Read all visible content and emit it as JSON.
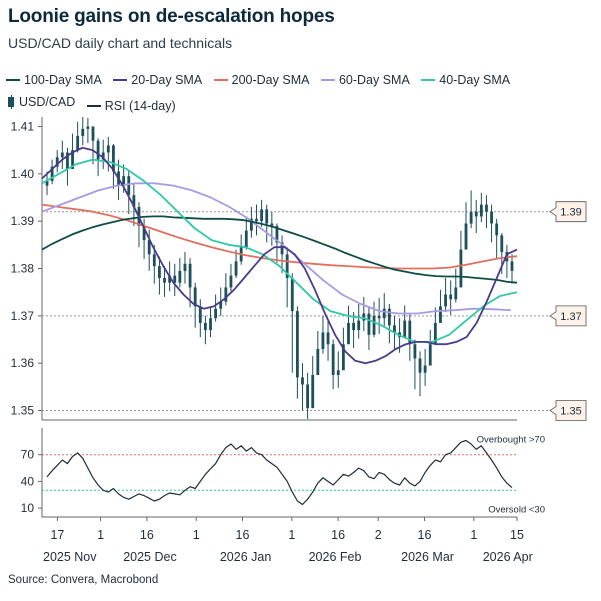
{
  "title": "Loonie gains on de-escalation hopes",
  "subtitle": "USD/CAD daily chart and technicals",
  "source": "Source: Convera, Macrobond",
  "colors": {
    "sma100": "#0e4d47",
    "sma20": "#4a3a8c",
    "sma200": "#e0705e",
    "sma60": "#a99be3",
    "sma40": "#2fc9a6",
    "candle": "#1d4f5c",
    "rsi": "#1f2d3a",
    "overbought": "#e0705e",
    "oversold": "#2fc9a6",
    "reference": "#999999"
  },
  "legend": [
    {
      "key": "sma100",
      "label": "100-Day SMA"
    },
    {
      "key": "sma20",
      "label": "20-Day SMA"
    },
    {
      "key": "sma200",
      "label": "200-Day SMA"
    },
    {
      "key": "sma60",
      "label": "60-Day SMA"
    },
    {
      "key": "sma40",
      "label": "40-Day SMA"
    },
    {
      "key": "candle",
      "label": "USD/CAD"
    },
    {
      "key": "rsi",
      "label": "RSI (14-day)"
    }
  ],
  "chart_data": {
    "type": "candlestick",
    "x_start": "2025-11-12",
    "x_end": "2026-04-15",
    "x_ticks": [
      {
        "date": "2025-11-17",
        "label": "17"
      },
      {
        "date": "2025-12-01",
        "label": "1"
      },
      {
        "date": "2025-12-16",
        "label": "16"
      },
      {
        "date": "2026-01-01",
        "label": "1"
      },
      {
        "date": "2026-01-16",
        "label": "16"
      },
      {
        "date": "2026-02-01",
        "label": "1"
      },
      {
        "date": "2026-02-16",
        "label": "16"
      },
      {
        "date": "2026-03-01",
        "label": "2"
      },
      {
        "date": "2026-03-16",
        "label": "16"
      },
      {
        "date": "2026-04-01",
        "label": "1"
      },
      {
        "date": "2026-04-15",
        "label": "15"
      }
    ],
    "month_labels": [
      {
        "date": "2025-11-21",
        "label": "2025 Nov"
      },
      {
        "date": "2025-12-17",
        "label": "2025 Dec"
      },
      {
        "date": "2026-01-17",
        "label": "2026 Jan"
      },
      {
        "date": "2026-02-15",
        "label": "2026 Feb"
      },
      {
        "date": "2026-03-17",
        "label": "2026 Mar"
      },
      {
        "date": "2026-04-12",
        "label": "2026 Apr"
      }
    ],
    "price_panel": {
      "ylim": [
        1.348,
        1.412
      ],
      "y_ticks": [
        1.35,
        1.36,
        1.37,
        1.38,
        1.39,
        1.4,
        1.41
      ],
      "y_tick_labels": [
        "1.35",
        "1.36",
        "1.37",
        "1.38",
        "1.39",
        "1.40",
        "1.41"
      ],
      "reference_lines": [
        {
          "value": 1.392,
          "label": "1.39"
        },
        {
          "value": 1.37,
          "label": "1.37"
        },
        {
          "value": 1.35,
          "label": "1.35"
        }
      ],
      "candles_close": [
        1.3985,
        1.4015,
        1.4035,
        1.4045,
        1.401,
        1.405,
        1.408,
        1.4095,
        1.41,
        1.407,
        1.403,
        1.4045,
        1.406,
        1.4005,
        1.3975,
        1.3995,
        1.3955,
        1.393,
        1.389,
        1.386,
        1.383,
        1.3805,
        1.378,
        1.377,
        1.3785,
        1.377,
        1.3795,
        1.381,
        1.376,
        1.372,
        1.3685,
        1.367,
        1.3695,
        1.3715,
        1.373,
        1.376,
        1.3785,
        1.3815,
        1.3845,
        1.388,
        1.3905,
        1.39,
        1.3925,
        1.3895,
        1.389,
        1.3855,
        1.383,
        1.378,
        1.371,
        1.357,
        1.3555,
        1.3505,
        1.3575,
        1.363,
        1.3665,
        1.364,
        1.3575,
        1.3585,
        1.364,
        1.3685,
        1.367,
        1.369,
        1.3705,
        1.366,
        1.37,
        1.3695,
        1.3715,
        1.368,
        1.3665,
        1.3655,
        1.369,
        1.364,
        1.361,
        1.358,
        1.3595,
        1.364,
        1.3685,
        1.372,
        1.3745,
        1.3735,
        1.376,
        1.384,
        1.3895,
        1.392,
        1.391,
        1.3935,
        1.392,
        1.3895,
        1.387,
        1.3835,
        1.3815,
        1.3795
      ],
      "candles_high": [
        1.4005,
        1.403,
        1.405,
        1.407,
        1.4055,
        1.4085,
        1.411,
        1.412,
        1.4118,
        1.4098,
        1.4075,
        1.4072,
        1.4078,
        1.4063,
        1.403,
        1.402,
        1.4008,
        1.398,
        1.394,
        1.3905,
        1.3882,
        1.385,
        1.3825,
        1.3805,
        1.3815,
        1.381,
        1.3822,
        1.3835,
        1.3822,
        1.377,
        1.3735,
        1.37,
        1.372,
        1.3745,
        1.376,
        1.379,
        1.381,
        1.384,
        1.3872,
        1.391,
        1.393,
        1.3935,
        1.3945,
        1.3935,
        1.392,
        1.3895,
        1.387,
        1.3845,
        1.379,
        1.372,
        1.36,
        1.358,
        1.3615,
        1.3668,
        1.37,
        1.369,
        1.365,
        1.3625,
        1.3675,
        1.3722,
        1.3708,
        1.3725,
        1.374,
        1.3718,
        1.373,
        1.3738,
        1.3748,
        1.3725,
        1.37,
        1.3695,
        1.3722,
        1.3705,
        1.365,
        1.3625,
        1.363,
        1.367,
        1.3718,
        1.3755,
        1.378,
        1.3775,
        1.38,
        1.388,
        1.394,
        1.3965,
        1.3945,
        1.396,
        1.3955,
        1.3935,
        1.3905,
        1.3875,
        1.385,
        1.383
      ],
      "candles_low": [
        1.3955,
        1.3978,
        1.4003,
        1.401,
        1.3975,
        1.4015,
        1.4045,
        1.406,
        1.4065,
        1.402,
        1.3995,
        1.401,
        1.4005,
        1.3968,
        1.3945,
        1.396,
        1.3915,
        1.389,
        1.3845,
        1.382,
        1.3795,
        1.3768,
        1.3745,
        1.374,
        1.3752,
        1.3742,
        1.376,
        1.3768,
        1.3718,
        1.3675,
        1.3655,
        1.364,
        1.3655,
        1.3688,
        1.37,
        1.3722,
        1.3752,
        1.378,
        1.3808,
        1.384,
        1.3865,
        1.387,
        1.3888,
        1.3855,
        1.3848,
        1.3812,
        1.379,
        1.3718,
        1.358,
        1.3525,
        1.35,
        1.3482,
        1.353,
        1.3585,
        1.362,
        1.3605,
        1.3545,
        1.3548,
        1.3605,
        1.3645,
        1.3632,
        1.3652,
        1.3668,
        1.3628,
        1.3655,
        1.3662,
        1.3675,
        1.3642,
        1.3628,
        1.3622,
        1.3652,
        1.3605,
        1.3545,
        1.353,
        1.3552,
        1.3605,
        1.365,
        1.3688,
        1.3708,
        1.3702,
        1.3728,
        1.378,
        1.3862,
        1.3885,
        1.3875,
        1.3898,
        1.3885,
        1.3855,
        1.382,
        1.3788,
        1.378,
        1.3768
      ],
      "sma": {
        "sma100": [
          1.384,
          1.3852,
          1.3862,
          1.3872,
          1.388,
          1.3887,
          1.3893,
          1.3898,
          1.3903,
          1.3906,
          1.3909,
          1.391,
          1.391,
          1.3908,
          1.3907,
          1.3906,
          1.3905,
          1.3905,
          1.3905,
          1.3904,
          1.3902,
          1.3898,
          1.3893,
          1.3887,
          1.388,
          1.3873,
          1.3866,
          1.3858,
          1.385,
          1.3842,
          1.3833,
          1.3825,
          1.3817,
          1.381,
          1.3803,
          1.3797,
          1.3793,
          1.3789,
          1.3786,
          1.3784,
          1.3783,
          1.3783,
          1.3782,
          1.378,
          1.3778,
          1.3776,
          1.3772,
          1.377
        ],
        "sma20": [
          1.399,
          1.401,
          1.403,
          1.4045,
          1.4055,
          1.405,
          1.4035,
          1.401,
          1.3975,
          1.3935,
          1.389,
          1.3845,
          1.3805,
          1.377,
          1.3745,
          1.3725,
          1.3715,
          1.372,
          1.3735,
          1.3755,
          1.378,
          1.3805,
          1.383,
          1.3845,
          1.3845,
          1.383,
          1.38,
          1.3755,
          1.3705,
          1.366,
          1.3625,
          1.3605,
          1.36,
          1.3605,
          1.3615,
          1.363,
          1.364,
          1.3645,
          1.3645,
          1.364,
          1.364,
          1.3645,
          1.3655,
          1.3685,
          1.373,
          1.378,
          1.383,
          1.384
        ],
        "sma200": [
          1.3935,
          1.393,
          1.3925,
          1.392,
          1.3912,
          1.3902,
          1.389,
          1.3878,
          1.3866,
          1.3855,
          1.3845,
          1.3836,
          1.3828,
          1.3822,
          1.3817,
          1.3813,
          1.381,
          1.3807,
          1.3805,
          1.3803,
          1.3801,
          1.38,
          1.38,
          1.38,
          1.3802,
          1.3808,
          1.3815,
          1.3822,
          1.3826
        ],
        "sma60": [
          1.392,
          1.3935,
          1.395,
          1.3965,
          1.3975,
          1.398,
          1.398,
          1.3975,
          1.3965,
          1.395,
          1.393,
          1.3905,
          1.3875,
          1.3845,
          1.381,
          1.3775,
          1.3745,
          1.3725,
          1.371,
          1.3705,
          1.3705,
          1.371,
          1.3712,
          1.3715,
          1.3714,
          1.3712
        ],
        "sma40": [
          1.398,
          1.4,
          1.402,
          1.403,
          1.4025,
          1.401,
          1.3985,
          1.3955,
          1.392,
          1.3885,
          1.386,
          1.385,
          1.3845,
          1.383,
          1.3805,
          1.377,
          1.3735,
          1.371,
          1.37,
          1.3695,
          1.368,
          1.366,
          1.3645,
          1.3645,
          1.366,
          1.369,
          1.372,
          1.3742,
          1.375
        ]
      },
      "sma_start": {
        "sma100": "2025-11-12",
        "sma20": "2025-11-12",
        "sma200": "2025-11-12",
        "sma60": "2025-11-12",
        "sma40": "2025-11-12"
      },
      "sma_end": {
        "sma100": "2026-04-15",
        "sma20": "2026-04-15",
        "sma200": "2026-04-15",
        "sma60": "2026-04-13",
        "sma40": "2026-04-15"
      }
    },
    "rsi_panel": {
      "ylim": [
        0,
        100
      ],
      "y_ticks": [
        10,
        40,
        70
      ],
      "y_tick_labels": [
        "10",
        "40",
        "70"
      ],
      "overbought": 70,
      "oversold": 30,
      "overbought_label": "Overbought >70",
      "oversold_label": "Oversold <30",
      "values": [
        45,
        52,
        58,
        64,
        60,
        68,
        72,
        66,
        55,
        44,
        36,
        30,
        28,
        32,
        26,
        22,
        20,
        23,
        26,
        24,
        21,
        18,
        20,
        24,
        27,
        26,
        25,
        30,
        34,
        32,
        40,
        48,
        54,
        60,
        70,
        78,
        82,
        76,
        80,
        74,
        78,
        72,
        70,
        64,
        60,
        56,
        48,
        40,
        28,
        18,
        14,
        20,
        28,
        38,
        44,
        40,
        36,
        42,
        48,
        46,
        50,
        55,
        52,
        45,
        43,
        50,
        48,
        42,
        38,
        36,
        44,
        38,
        35,
        40,
        50,
        58,
        64,
        62,
        70,
        72,
        78,
        84,
        86,
        82,
        76,
        80,
        72,
        64,
        55,
        45,
        38,
        33
      ]
    }
  }
}
